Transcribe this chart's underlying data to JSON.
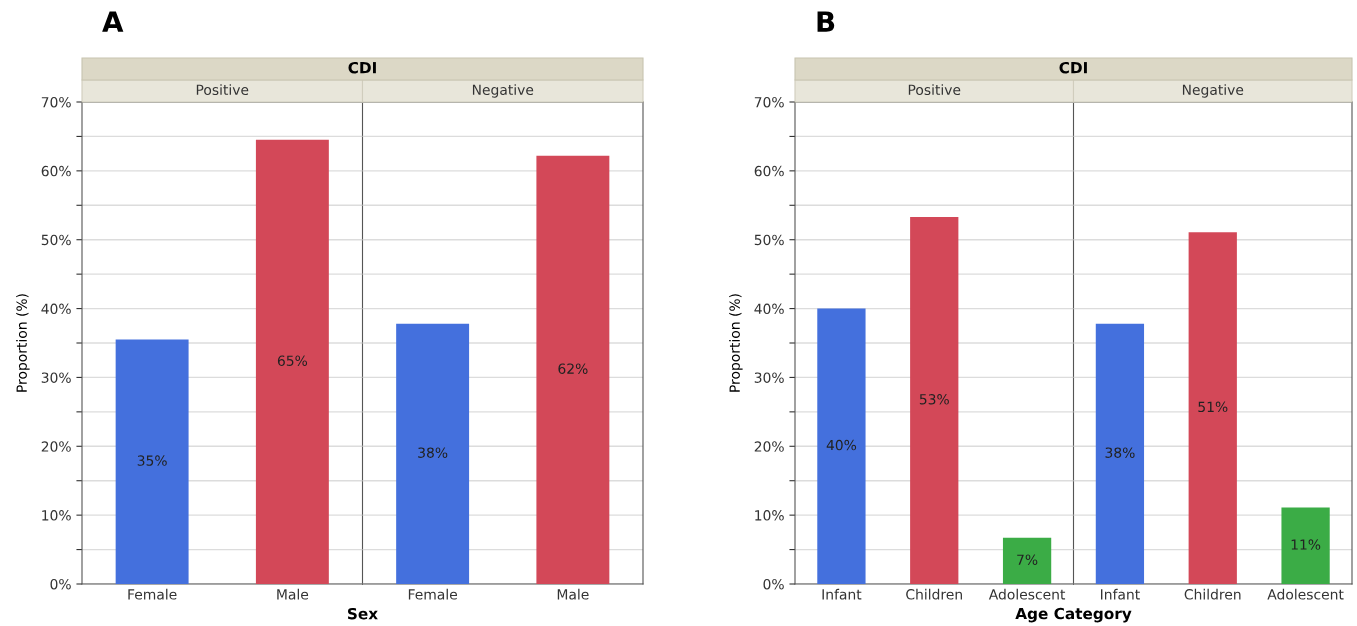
{
  "chart_data": [
    {
      "type": "bar",
      "title": "CDI",
      "annotations": [
        "A",
        "Positive",
        "Negative"
      ],
      "xlabel": "Sex",
      "ylabel": "Proportion (%)",
      "categories": [
        "Female",
        "Male",
        "Female",
        "Male"
      ],
      "values": [
        35.5,
        64.5,
        37.8,
        62.2
      ],
      "colors": [
        "#4470dd",
        "#d34858",
        "#4470dd",
        "#d34858"
      ],
      "value_labels": [
        "35%",
        "65%",
        "38%",
        "62%"
      ],
      "ylim": [
        0,
        70
      ],
      "yticks": [
        {
          "value": 0,
          "label": "0%"
        },
        {
          "value": 5,
          "label": null
        },
        {
          "value": 10,
          "label": "10%"
        },
        {
          "value": 15,
          "label": null
        },
        {
          "value": 20,
          "label": "20%"
        },
        {
          "value": 25,
          "label": null
        },
        {
          "value": 30,
          "label": "30%"
        },
        {
          "value": 35,
          "label": null
        },
        {
          "value": 40,
          "label": "40%"
        },
        {
          "value": 45,
          "label": null
        },
        {
          "value": 50,
          "label": "50%"
        },
        {
          "value": 55,
          "label": null
        },
        {
          "value": 60,
          "label": "60%"
        },
        {
          "value": 65,
          "label": null
        },
        {
          "value": 70,
          "label": "70%"
        }
      ],
      "grid": "y",
      "legend": false
    },
    {
      "type": "bar",
      "title": "CDI",
      "annotations": [
        "B",
        "Positive",
        "Negative"
      ],
      "xlabel": "Age Category",
      "ylabel": "Proportion (%)",
      "categories": [
        "Infant",
        "Children",
        "Adolescent",
        "Infant",
        "Children",
        "Adolescent"
      ],
      "values": [
        40.0,
        53.3,
        6.7,
        37.8,
        51.1,
        11.1
      ],
      "colors": [
        "#4470dd",
        "#d34858",
        "#3bac46",
        "#4470dd",
        "#d34858",
        "#3bac46"
      ],
      "value_labels": [
        "40%",
        "53%",
        "7%",
        "38%",
        "51%",
        "11%"
      ],
      "ylim": [
        0,
        70
      ],
      "yticks": [
        {
          "value": 0,
          "label": "0%"
        },
        {
          "value": 5,
          "label": null
        },
        {
          "value": 10,
          "label": "10%"
        },
        {
          "value": 15,
          "label": null
        },
        {
          "value": 20,
          "label": "20%"
        },
        {
          "value": 25,
          "label": null
        },
        {
          "value": 30,
          "label": "30%"
        },
        {
          "value": 35,
          "label": null
        },
        {
          "value": 40,
          "label": "40%"
        },
        {
          "value": 45,
          "label": null
        },
        {
          "value": 50,
          "label": "50%"
        },
        {
          "value": 55,
          "label": null
        },
        {
          "value": 60,
          "label": "60%"
        },
        {
          "value": 65,
          "label": null
        },
        {
          "value": 70,
          "label": "70%"
        }
      ],
      "grid": "y",
      "legend": false
    }
  ]
}
